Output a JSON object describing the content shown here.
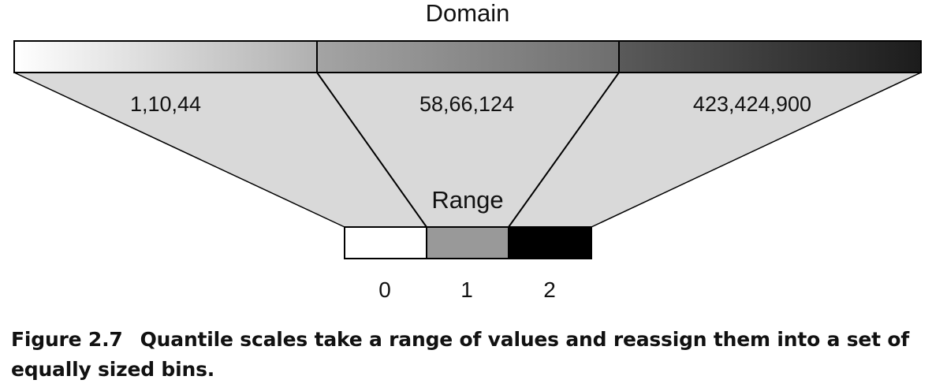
{
  "diagram": {
    "domain_title": "Domain",
    "range_title": "Range",
    "domain_bins": [
      {
        "values": "1,10,44",
        "gradient_from": "#ffffff",
        "gradient_to": "#b0b0b0"
      },
      {
        "values": "58,66,124",
        "gradient_from": "#a4a4a4",
        "gradient_to": "#6e6e6e"
      },
      {
        "values": "423,424,900",
        "gradient_from": "#5a5a5a",
        "gradient_to": "#1c1c1c"
      }
    ],
    "range_bins": [
      {
        "label": "0",
        "color": "#ffffff"
      },
      {
        "label": "1",
        "color": "#999999"
      },
      {
        "label": "2",
        "color": "#000000"
      }
    ],
    "funnel_color": "#d9d9d9"
  },
  "caption": {
    "label": "Figure 2.7",
    "text": "Quantile scales take a range of values and reassign them into a set of equally sized bins."
  }
}
